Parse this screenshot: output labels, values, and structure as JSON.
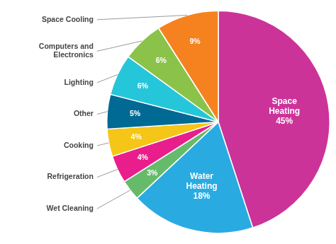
{
  "chart_data": {
    "type": "pie",
    "categories": [
      "Space\nHeating",
      "Water\nHeating",
      "Wet Cleaning",
      "Refrigeration",
      "Cooking",
      "Other",
      "Lighting",
      "Computers and\nElectronics",
      "Space Cooling"
    ],
    "values": [
      45,
      18,
      3,
      4,
      4,
      5,
      6,
      6,
      9
    ],
    "value_labels": [
      "45%",
      "18%",
      "3%",
      "4%",
      "4%",
      "5%",
      "6%",
      "6%",
      "9%"
    ],
    "colors": [
      "#cc3399",
      "#29abe2",
      "#66bb6a",
      "#e91e8c",
      "#f5c518",
      "#006994",
      "#26c6da",
      "#8bc34a",
      "#f5821f"
    ],
    "data_labels": true
  }
}
